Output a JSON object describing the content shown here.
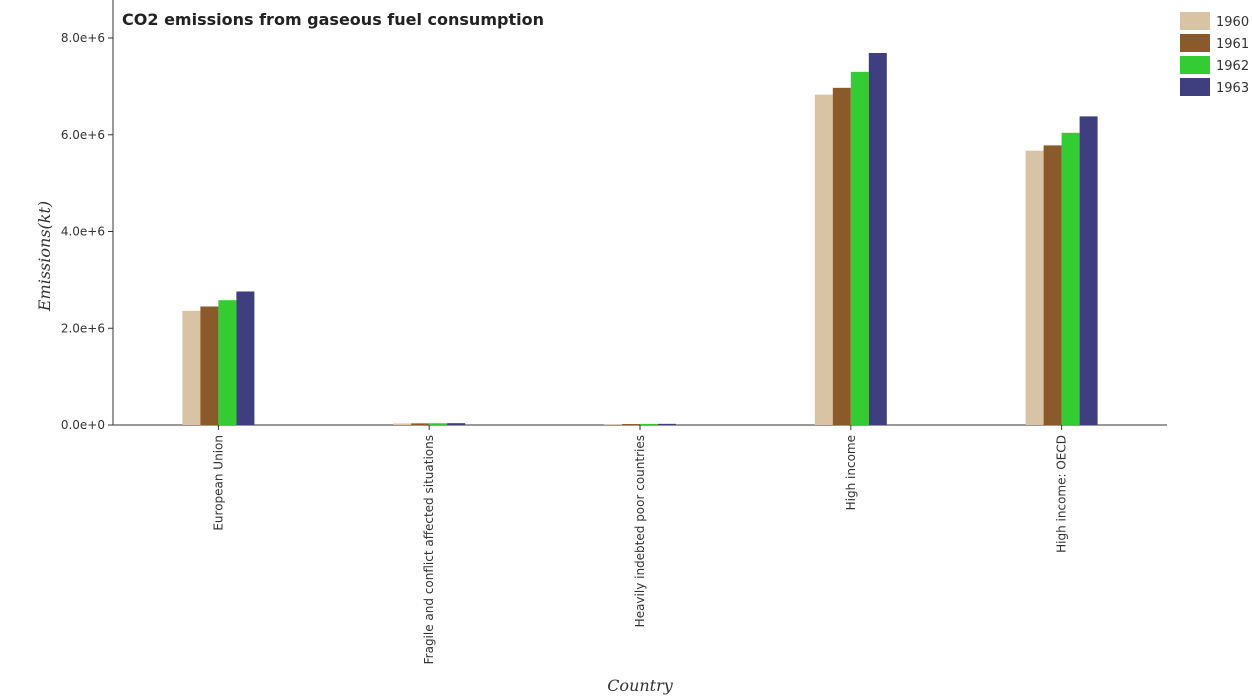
{
  "chart_data": {
    "type": "bar",
    "title": "CO2 emissions from gaseous fuel consumption",
    "xlabel": "Country",
    "ylabel": "Emissions(kt)",
    "categories": [
      "European Union",
      "Fragile and conflict affected situations",
      "Heavily indebted poor countries",
      "High income",
      "High income: OECD"
    ],
    "series": [
      {
        "name": "1960",
        "color": "#d8c3a5",
        "values": [
          2360000,
          32000,
          18000,
          6830000,
          5670000
        ]
      },
      {
        "name": "1961",
        "color": "#8b5a2b",
        "values": [
          2450000,
          34000,
          20000,
          6970000,
          5780000
        ]
      },
      {
        "name": "1962",
        "color": "#33cc33",
        "values": [
          2580000,
          36000,
          22000,
          7300000,
          6040000
        ]
      },
      {
        "name": "1963",
        "color": "#3f3f7f",
        "values": [
          2760000,
          38000,
          24000,
          7690000,
          6380000
        ]
      }
    ],
    "ylim": [
      0,
      8000000
    ],
    "yticks": [
      0,
      2000000,
      4000000,
      6000000,
      8000000
    ],
    "ytick_labels": [
      "0.0e+0",
      "2.0e+6",
      "4.0e+6",
      "6.0e+6",
      "8.0e+6"
    ],
    "grid": false,
    "legend_position": "top-right"
  }
}
